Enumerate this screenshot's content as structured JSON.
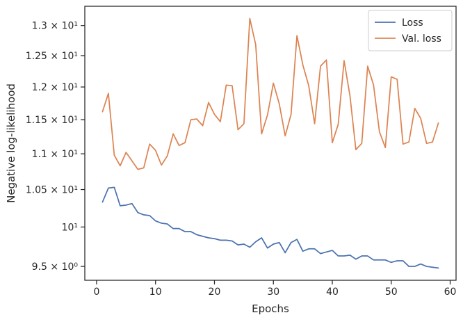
{
  "chart_data": {
    "type": "line",
    "xlabel": "Epochs",
    "ylabel": "Negative log-likelihood",
    "yscale": "log",
    "xlim": [
      -2,
      61
    ],
    "ylim": [
      9.33,
      13.33
    ],
    "xticks": [
      {
        "value": 0,
        "label": "0"
      },
      {
        "value": 10,
        "label": "10"
      },
      {
        "value": 20,
        "label": "20"
      },
      {
        "value": 30,
        "label": "30"
      },
      {
        "value": 40,
        "label": "40"
      },
      {
        "value": 50,
        "label": "50"
      },
      {
        "value": 60,
        "label": "60"
      }
    ],
    "yticks": [
      {
        "value": 9.5,
        "label": "9.5 × 10⁰"
      },
      {
        "value": 10.0,
        "label": "10¹"
      },
      {
        "value": 10.5,
        "label": "1.05 × 10¹"
      },
      {
        "value": 11.0,
        "label": "1.1 × 10¹"
      },
      {
        "value": 11.5,
        "label": "1.15 × 10¹"
      },
      {
        "value": 12.0,
        "label": "1.2 × 10¹"
      },
      {
        "value": 12.5,
        "label": "1.25 × 10¹"
      },
      {
        "value": 13.0,
        "label": "1.3 × 10¹"
      }
    ],
    "grid": false,
    "legend_position": "top-right",
    "x": [
      1,
      2,
      3,
      4,
      5,
      6,
      7,
      8,
      9,
      10,
      11,
      12,
      13,
      14,
      15,
      16,
      17,
      18,
      19,
      20,
      21,
      22,
      23,
      24,
      25,
      26,
      27,
      28,
      29,
      30,
      31,
      32,
      33,
      34,
      35,
      36,
      37,
      38,
      39,
      40,
      41,
      42,
      43,
      44,
      45,
      46,
      47,
      48,
      49,
      50,
      51,
      52,
      53,
      54,
      55,
      56,
      57,
      58
    ],
    "series": [
      {
        "name": "Loss",
        "color": "#4c72b0",
        "values": [
          10.33,
          10.52,
          10.53,
          10.28,
          10.29,
          10.31,
          10.19,
          10.16,
          10.15,
          10.08,
          10.05,
          10.04,
          9.98,
          9.98,
          9.94,
          9.94,
          9.9,
          9.88,
          9.86,
          9.85,
          9.83,
          9.83,
          9.82,
          9.77,
          9.78,
          9.74,
          9.81,
          9.86,
          9.73,
          9.78,
          9.8,
          9.67,
          9.8,
          9.84,
          9.69,
          9.72,
          9.72,
          9.66,
          9.68,
          9.7,
          9.63,
          9.63,
          9.64,
          9.59,
          9.63,
          9.63,
          9.58,
          9.58,
          9.58,
          9.55,
          9.57,
          9.57,
          9.5,
          9.5,
          9.53,
          9.5,
          9.49,
          9.48
        ]
      },
      {
        "name": "Val. loss",
        "color": "#dd8452",
        "values": [
          11.62,
          11.9,
          10.98,
          10.83,
          11.02,
          10.9,
          10.78,
          10.8,
          11.14,
          11.05,
          10.84,
          10.97,
          11.29,
          11.12,
          11.16,
          11.5,
          11.51,
          11.41,
          11.76,
          11.58,
          11.47,
          12.03,
          12.02,
          11.35,
          11.44,
          13.12,
          12.68,
          11.29,
          11.57,
          12.06,
          11.74,
          11.26,
          11.58,
          12.83,
          12.35,
          12.02,
          11.44,
          12.33,
          12.43,
          11.16,
          11.43,
          12.42,
          11.86,
          11.06,
          11.15,
          12.33,
          12.03,
          11.32,
          11.09,
          12.16,
          12.12,
          11.14,
          11.17,
          11.67,
          11.52,
          11.15,
          11.17,
          11.45
        ]
      }
    ]
  }
}
